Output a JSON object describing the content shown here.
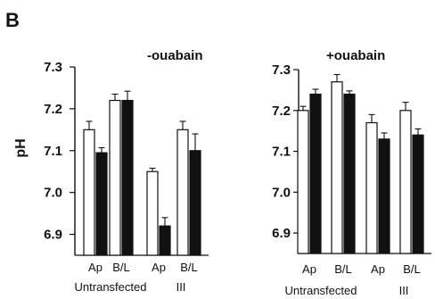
{
  "figure": {
    "panel_label": "B",
    "ylabel": "pH"
  },
  "chart_data": [
    {
      "type": "bar",
      "title": "-ouabain",
      "ylim": [
        6.85,
        7.3
      ],
      "ticks": [
        "7.3",
        "7.2",
        "7.1",
        "7.0",
        "6.9"
      ],
      "tick_values": [
        7.3,
        7.2,
        7.1,
        7.0,
        6.9
      ],
      "categories": [
        "Ap",
        "B/L",
        "Ap",
        "B/L"
      ],
      "groups": [
        {
          "label": "Untransfected",
          "categories": [
            0,
            1
          ]
        },
        {
          "label": "III",
          "categories": [
            2,
            3
          ]
        }
      ],
      "series": [
        {
          "fill": "#ffffff",
          "values": [
            7.15,
            7.22,
            7.05,
            7.15
          ],
          "errors": [
            0.02,
            0.015,
            0.008,
            0.02
          ]
        },
        {
          "fill": "#111111",
          "values": [
            7.095,
            7.22,
            6.92,
            7.1
          ],
          "errors": [
            0.012,
            0.022,
            0.02,
            0.04
          ]
        }
      ],
      "legend": "none",
      "grid": false
    },
    {
      "type": "bar",
      "title": "+ouabain",
      "ylim": [
        6.85,
        7.3
      ],
      "ticks": [
        "7.3",
        "7.2",
        "7.1",
        "7.0",
        "6.9"
      ],
      "tick_values": [
        7.3,
        7.2,
        7.1,
        7.0,
        6.9
      ],
      "categories": [
        "Ap",
        "B/L",
        "Ap",
        "B/L"
      ],
      "groups": [
        {
          "label": "Untransfected",
          "categories": [
            0,
            1
          ]
        },
        {
          "label": "III",
          "categories": [
            2,
            3
          ]
        }
      ],
      "series": [
        {
          "fill": "#ffffff",
          "values": [
            7.2,
            7.27,
            7.17,
            7.2
          ],
          "errors": [
            0.01,
            0.018,
            0.02,
            0.02
          ]
        },
        {
          "fill": "#111111",
          "values": [
            7.24,
            7.24,
            7.13,
            7.14
          ],
          "errors": [
            0.012,
            0.008,
            0.015,
            0.015
          ]
        }
      ],
      "legend": "none",
      "grid": false
    }
  ]
}
